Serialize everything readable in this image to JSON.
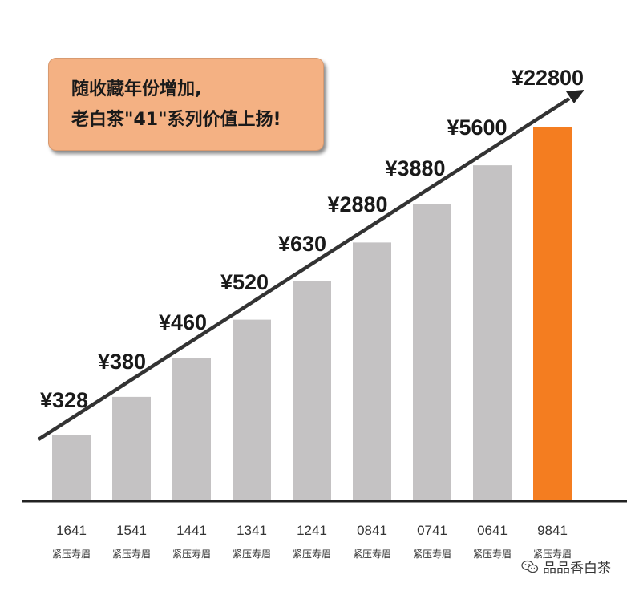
{
  "callout": {
    "line1": "随收藏年份增加,",
    "line2": "老白茶\"41\"系列价值上扬!"
  },
  "watermark": {
    "text": "品品香白茶"
  },
  "chart_data": {
    "type": "bar",
    "categories": [
      "1641",
      "1541",
      "1441",
      "1341",
      "1241",
      "0841",
      "0741",
      "0641",
      "9841"
    ],
    "subcategory_labels": [
      "紧压寿眉",
      "紧压寿眉",
      "紧压寿眉",
      "紧压寿眉",
      "紧压寿眉",
      "紧压寿眉",
      "紧压寿眉",
      "紧压寿眉",
      "紧压寿眉"
    ],
    "values": [
      328,
      380,
      460,
      520,
      630,
      2880,
      3880,
      5600,
      22800
    ],
    "value_labels": [
      "¥328",
      "¥380",
      "¥460",
      "¥520",
      "¥630",
      "¥2880",
      "¥3880",
      "¥5600",
      "¥22800"
    ],
    "title": "",
    "xlabel": "",
    "ylabel": "",
    "bar_colors": [
      "#c4c2c3",
      "#c4c2c3",
      "#c4c2c3",
      "#c4c2c3",
      "#c4c2c3",
      "#c4c2c3",
      "#c4c2c3",
      "#c4c2c3",
      "#f47d20"
    ],
    "trend_arrow": true,
    "axis_color": "#222222"
  }
}
